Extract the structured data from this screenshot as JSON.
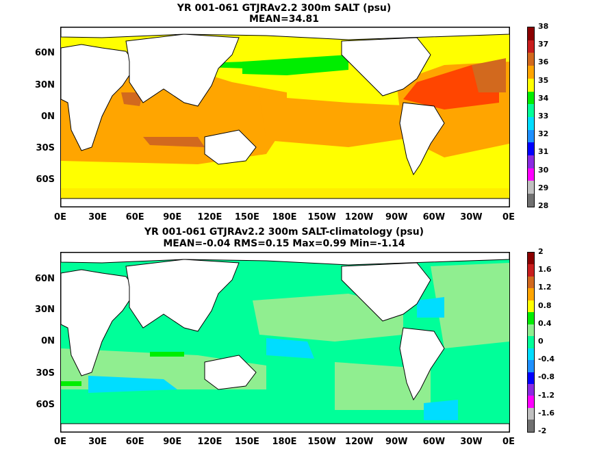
{
  "panel1": {
    "title_line1": "YR 001-061 GTJRAv2.2 300m SALT (psu)",
    "title_line2": "MEAN=34.81",
    "lat_labels": [
      "60N",
      "30N",
      "0N",
      "30S",
      "60S"
    ],
    "lon_labels": [
      "0E",
      "30E",
      "60E",
      "90E",
      "120E",
      "150E",
      "180E",
      "150W",
      "120W",
      "90W",
      "60W",
      "30W",
      "0E"
    ],
    "colorbar_labels": [
      "38",
      "37",
      "36",
      "35",
      "34",
      "33",
      "32",
      "31",
      "30",
      "29",
      "28"
    ],
    "colorbar_colors": [
      "#8b0000",
      "#c81e1e",
      "#d2691e",
      "#ffa500",
      "#ffff00",
      "#00ee00",
      "#00ff99",
      "#00ddff",
      "#1e90ff",
      "#0000ff",
      "#8a2be2",
      "#ff00ff",
      "#c0c0c0",
      "#707070"
    ]
  },
  "panel2": {
    "title_line1": "YR 001-061 GTJRAv2.2 300m SALT-climatology (psu)",
    "title_line2": "MEAN=-0.04   RMS=0.15   Max=0.99   Min=-1.14",
    "lat_labels": [
      "60N",
      "30N",
      "0N",
      "30S",
      "60S"
    ],
    "lon_labels": [
      "0E",
      "30E",
      "60E",
      "90E",
      "120E",
      "150E",
      "180E",
      "150W",
      "120W",
      "90W",
      "60W",
      "30W",
      "0E"
    ],
    "colorbar_labels": [
      "2",
      "1.6",
      "1.2",
      "0.8",
      "0.4",
      "0",
      "-0.4",
      "-0.8",
      "-1.2",
      "-1.6",
      "-2"
    ],
    "colorbar_colors": [
      "#8b0000",
      "#c81e1e",
      "#d2691e",
      "#ffa500",
      "#ffff00",
      "#00ee00",
      "#90ee90",
      "#00ff99",
      "#00ddff",
      "#1e90ff",
      "#0000ff",
      "#8a2be2",
      "#ff00ff",
      "#c0c0c0",
      "#707070"
    ]
  }
}
